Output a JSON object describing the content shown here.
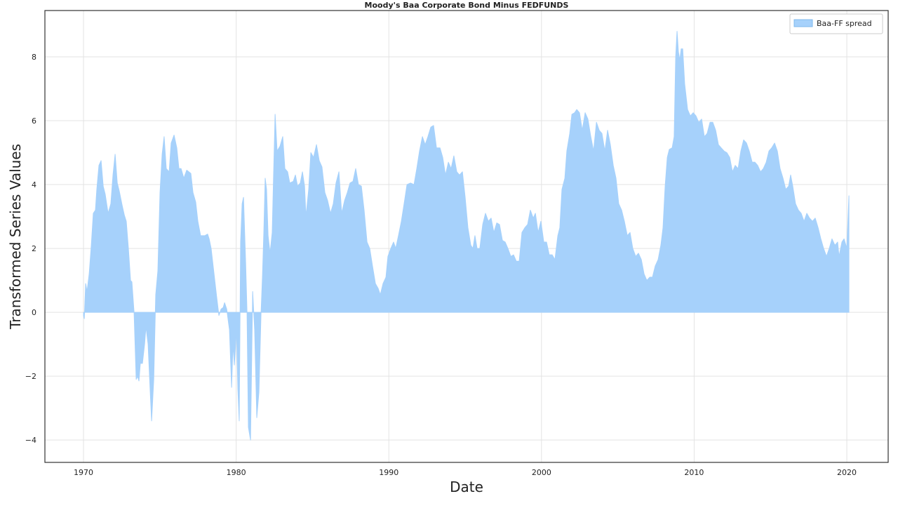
{
  "chart_data": {
    "type": "area",
    "title": "Moody's Baa Corporate Bond Minus FEDFUNDS",
    "x_label": "Date",
    "y_label": "Transformed Series Values",
    "xlim": [
      1967.47,
      2022.71
    ],
    "xticks": [
      1970,
      1980,
      1990,
      2000,
      2010,
      2020
    ],
    "ylim": [
      -4.7,
      9.45
    ],
    "yticks": [
      {
        "value": -4,
        "label": "−4"
      },
      {
        "value": -2,
        "label": "−2"
      },
      0,
      2,
      4,
      6,
      8
    ],
    "grid": true,
    "legend": "upper right",
    "x": [
      1970.0,
      1970.05,
      1970.14,
      1970.23,
      1970.37,
      1970.51,
      1970.64,
      1970.78,
      1970.87,
      1971.01,
      1971.15,
      1971.29,
      1971.42,
      1971.61,
      1971.79,
      1971.93,
      1972.07,
      1972.21,
      1972.34,
      1972.53,
      1972.67,
      1972.8,
      1972.94,
      1973.08,
      1973.17,
      1973.31,
      1973.45,
      1973.54,
      1973.63,
      1973.72,
      1973.86,
      1974.0,
      1974.09,
      1974.23,
      1974.37,
      1974.46,
      1974.6,
      1974.73,
      1974.87,
      1975.01,
      1975.15,
      1975.28,
      1975.42,
      1975.61,
      1975.74,
      1975.93,
      1976.11,
      1976.25,
      1976.39,
      1976.57,
      1976.76,
      1977.03,
      1977.17,
      1977.35,
      1977.49,
      1977.67,
      1977.95,
      1978.13,
      1978.23,
      1978.36,
      1978.55,
      1978.73,
      1978.87,
      1979.01,
      1979.15,
      1979.24,
      1979.38,
      1979.56,
      1979.7,
      1979.79,
      1979.88,
      1980.02,
      1980.11,
      1980.2,
      1980.29,
      1980.39,
      1980.48,
      1980.62,
      1980.71,
      1980.8,
      1980.94,
      1981.08,
      1981.21,
      1981.35,
      1981.49,
      1981.63,
      1981.72,
      1981.81,
      1981.9,
      1981.99,
      1982.09,
      1982.22,
      1982.36,
      1982.45,
      1982.55,
      1982.68,
      1982.87,
      1983.05,
      1983.19,
      1983.37,
      1983.51,
      1983.74,
      1983.88,
      1984.02,
      1984.2,
      1984.34,
      1984.48,
      1984.57,
      1984.75,
      1984.89,
      1985.07,
      1985.26,
      1985.44,
      1985.62,
      1985.81,
      1985.99,
      1986.18,
      1986.36,
      1986.54,
      1986.73,
      1986.91,
      1987.1,
      1987.28,
      1987.46,
      1987.65,
      1987.83,
      1988.01,
      1988.2,
      1988.38,
      1988.57,
      1988.75,
      1988.93,
      1989.12,
      1989.3,
      1989.44,
      1989.62,
      1989.81,
      1989.94,
      1990.13,
      1990.31,
      1990.45,
      1990.63,
      1990.82,
      1991.0,
      1991.19,
      1991.42,
      1991.65,
      1991.83,
      1992.01,
      1992.2,
      1992.38,
      1992.56,
      1992.75,
      1992.93,
      1993.12,
      1993.35,
      1993.53,
      1993.71,
      1993.9,
      1994.08,
      1994.26,
      1994.45,
      1994.63,
      1994.82,
      1995.0,
      1995.18,
      1995.37,
      1995.51,
      1995.64,
      1995.78,
      1995.96,
      1996.15,
      1996.33,
      1996.52,
      1996.7,
      1996.88,
      1997.07,
      1997.25,
      1997.44,
      1997.62,
      1997.8,
      1997.99,
      1998.17,
      1998.35,
      1998.54,
      1998.72,
      1998.91,
      1999.09,
      1999.27,
      1999.46,
      1999.6,
      1999.78,
      1999.96,
      2000.15,
      2000.33,
      2000.51,
      2000.7,
      2000.88,
      2001.07,
      2001.2,
      2001.34,
      2001.53,
      2001.66,
      2001.85,
      2001.99,
      2002.17,
      2002.31,
      2002.49,
      2002.67,
      2002.86,
      2003.04,
      2003.23,
      2003.41,
      2003.6,
      2003.78,
      2003.96,
      2004.15,
      2004.33,
      2004.51,
      2004.7,
      2004.88,
      2005.06,
      2005.25,
      2005.43,
      2005.62,
      2005.8,
      2005.98,
      2006.17,
      2006.35,
      2006.54,
      2006.72,
      2006.9,
      2007.09,
      2007.27,
      2007.45,
      2007.64,
      2007.82,
      2007.96,
      2008.1,
      2008.24,
      2008.37,
      2008.56,
      2008.69,
      2008.79,
      2008.88,
      2008.97,
      2009.06,
      2009.15,
      2009.25,
      2009.38,
      2009.57,
      2009.75,
      2009.94,
      2010.12,
      2010.3,
      2010.49,
      2010.67,
      2010.85,
      2011.04,
      2011.22,
      2011.41,
      2011.59,
      2011.77,
      2011.96,
      2012.14,
      2012.33,
      2012.51,
      2012.69,
      2012.88,
      2013.06,
      2013.24,
      2013.43,
      2013.61,
      2013.8,
      2013.98,
      2014.16,
      2014.35,
      2014.53,
      2014.72,
      2014.9,
      2015.08,
      2015.27,
      2015.45,
      2015.63,
      2015.82,
      2016.0,
      2016.19,
      2016.32,
      2016.46,
      2016.64,
      2016.83,
      2017.01,
      2017.2,
      2017.38,
      2017.56,
      2017.75,
      2017.93,
      2018.12,
      2018.3,
      2018.48,
      2018.67,
      2018.85,
      2019.03,
      2019.22,
      2019.4,
      2019.49,
      2019.68,
      2019.82,
      2020.0,
      2020.14
    ],
    "series": [
      {
        "name": "Baa-FF spread",
        "color": "#a6d1fb",
        "values": [
          -0.1,
          -0.2,
          0.9,
          0.65,
          1.2,
          2.1,
          3.1,
          3.2,
          3.85,
          4.6,
          4.75,
          3.95,
          3.7,
          3.1,
          3.4,
          4.3,
          4.95,
          4.05,
          3.8,
          3.35,
          3.05,
          2.85,
          2.0,
          1.0,
          0.95,
          0,
          -2.1,
          -2.0,
          -2.15,
          -1.6,
          -1.6,
          -1.0,
          -0.45,
          -1.0,
          -2.5,
          -3.4,
          -2.1,
          0.55,
          1.3,
          3.75,
          4.95,
          5.5,
          4.5,
          4.4,
          5.3,
          5.55,
          5.15,
          4.5,
          4.5,
          4.2,
          4.45,
          4.35,
          3.75,
          3.45,
          2.85,
          2.4,
          2.4,
          2.45,
          2.3,
          2.0,
          1.2,
          0.45,
          -0.1,
          0.1,
          0.15,
          0.3,
          0.1,
          -0.55,
          -2.35,
          -1.0,
          -1.65,
          -0.55,
          -2.4,
          -3.4,
          2.2,
          3.4,
          3.6,
          1.55,
          0,
          -3.6,
          -4.0,
          0.65,
          -0.55,
          -3.3,
          -2.5,
          0,
          1.1,
          2.5,
          4.2,
          3.85,
          2.4,
          1.85,
          2.5,
          4.3,
          6.2,
          5.05,
          5.2,
          5.5,
          4.5,
          4.4,
          4.05,
          4.1,
          4.3,
          3.95,
          4.05,
          4.4,
          3.95,
          3.0,
          3.85,
          5.0,
          4.85,
          5.25,
          4.75,
          4.55,
          3.75,
          3.5,
          3.1,
          3.4,
          4.05,
          4.4,
          3.1,
          3.5,
          3.75,
          4.05,
          4.1,
          4.5,
          4.0,
          3.95,
          3.2,
          2.2,
          2.0,
          1.45,
          0.9,
          0.75,
          0.55,
          0.9,
          1.1,
          1.75,
          2.0,
          2.2,
          2.0,
          2.4,
          2.85,
          3.4,
          4.0,
          4.05,
          4.0,
          4.5,
          5.05,
          5.5,
          5.25,
          5.5,
          5.8,
          5.85,
          5.15,
          5.15,
          4.85,
          4.3,
          4.7,
          4.5,
          4.9,
          4.4,
          4.3,
          4.4,
          3.6,
          2.65,
          2.1,
          2.0,
          2.4,
          2.0,
          2.0,
          2.75,
          3.1,
          2.85,
          2.95,
          2.5,
          2.8,
          2.75,
          2.25,
          2.2,
          2.0,
          1.75,
          1.8,
          1.6,
          1.6,
          2.5,
          2.65,
          2.75,
          3.2,
          2.95,
          3.1,
          2.5,
          2.85,
          2.2,
          2.2,
          1.8,
          1.8,
          1.65,
          2.4,
          2.65,
          3.85,
          4.2,
          5.05,
          5.6,
          6.2,
          6.25,
          6.35,
          6.25,
          5.7,
          6.25,
          6.05,
          5.5,
          5.05,
          5.95,
          5.7,
          5.6,
          5.05,
          5.7,
          5.25,
          4.6,
          4.2,
          3.4,
          3.2,
          2.85,
          2.4,
          2.5,
          2.0,
          1.75,
          1.85,
          1.65,
          1.2,
          1.0,
          1.1,
          1.1,
          1.45,
          1.65,
          2.1,
          2.65,
          3.95,
          4.85,
          5.1,
          5.15,
          5.5,
          8.0,
          8.8,
          8.15,
          7.9,
          8.25,
          8.25,
          7.15,
          6.35,
          6.15,
          6.25,
          6.15,
          5.95,
          6.05,
          5.5,
          5.6,
          5.95,
          5.95,
          5.7,
          5.25,
          5.15,
          5.05,
          5.0,
          4.85,
          4.4,
          4.6,
          4.5,
          5.05,
          5.4,
          5.3,
          5.05,
          4.7,
          4.7,
          4.6,
          4.4,
          4.5,
          4.7,
          5.05,
          5.15,
          5.3,
          5.05,
          4.5,
          4.2,
          3.85,
          3.95,
          4.3,
          3.95,
          3.4,
          3.2,
          3.1,
          2.85,
          3.1,
          2.95,
          2.85,
          2.95,
          2.65,
          2.3,
          2.0,
          1.75,
          2.0,
          2.3,
          2.1,
          2.2,
          1.75,
          2.2,
          2.3,
          2.0,
          3.65
        ]
      }
    ]
  }
}
